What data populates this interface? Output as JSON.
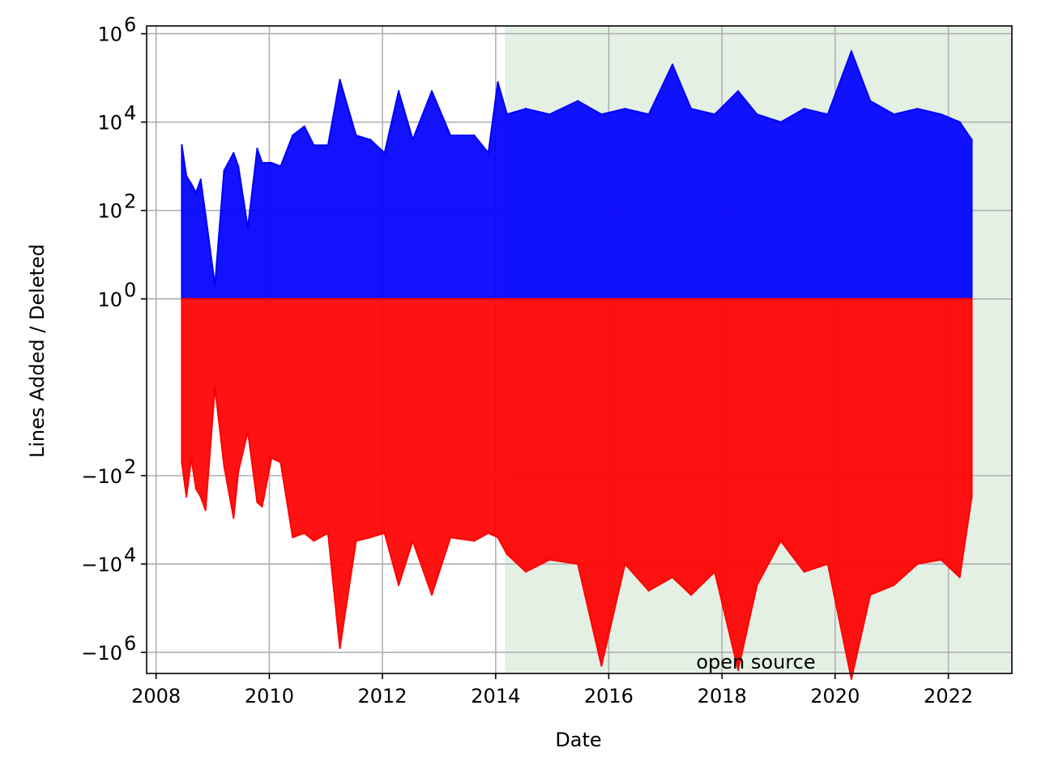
{
  "chart_data": {
    "type": "area",
    "xlabel": "Date",
    "ylabel": "Lines Added / Deleted",
    "x_axis": {
      "scale": "time",
      "range": [
        "2007-11-01",
        "2023-02-15"
      ],
      "ticks": [
        "2008",
        "2010",
        "2012",
        "2014",
        "2016",
        "2018",
        "2020",
        "2022"
      ]
    },
    "y_axis": {
      "scale": "symlog",
      "range": [
        -3000000,
        1500000
      ],
      "ticks": [
        {
          "value": 1000000,
          "base": "10",
          "exp": "6"
        },
        {
          "value": 10000,
          "base": "10",
          "exp": "4"
        },
        {
          "value": 100,
          "base": "10",
          "exp": "2"
        },
        {
          "value": 1,
          "base": "10",
          "exp": "0"
        },
        {
          "value": -100,
          "base": "−10",
          "exp": "2"
        },
        {
          "value": -10000,
          "base": "−10",
          "exp": "4"
        },
        {
          "value": -1000000,
          "base": "−10",
          "exp": "6"
        }
      ]
    },
    "grid": true,
    "shaded_region": {
      "label": "open source",
      "x_start": "2014-03-01",
      "x_end": "2023-02-15",
      "color": "#e5f0e5"
    },
    "series": [
      {
        "color": "#0000ff",
        "x": [
          "2008-06-15",
          "2008-07-15",
          "2008-08-15",
          "2008-09-15",
          "2008-10-15",
          "2008-11-15",
          "2009-01-15",
          "2009-03-15",
          "2009-05-15",
          "2009-06-15",
          "2009-08-15",
          "2009-10-15",
          "2009-11-15",
          "2010-01-15",
          "2010-03-15",
          "2010-06-01",
          "2010-08-15",
          "2010-10-15",
          "2011-01-15",
          "2011-04-01",
          "2011-07-15",
          "2011-10-15",
          "2012-01-15",
          "2012-04-15",
          "2012-07-15",
          "2012-11-15",
          "2013-03-15",
          "2013-08-15",
          "2013-11-15",
          "2014-01-15",
          "2014-03-15",
          "2014-07-15",
          "2014-12-15",
          "2015-06-15",
          "2015-11-15",
          "2016-04-15",
          "2016-09-15",
          "2017-02-15",
          "2017-06-15",
          "2017-11-15",
          "2018-04-15",
          "2018-08-15",
          "2019-01-15",
          "2019-06-15",
          "2019-11-15",
          "2020-04-15",
          "2020-08-15",
          "2021-01-15",
          "2021-06-15",
          "2021-11-15",
          "2022-03-15",
          "2022-06-01"
        ],
        "values": [
          3000,
          600,
          400,
          250,
          500,
          80,
          2,
          800,
          2000,
          1000,
          40,
          2500,
          1200,
          1200,
          1000,
          5000,
          8000,
          3000,
          3000,
          90000,
          5000,
          4000,
          2000,
          50000,
          4000,
          50000,
          5000,
          5000,
          2000,
          80000,
          15000,
          20000,
          15000,
          30000,
          15000,
          20000,
          15000,
          200000,
          20000,
          15000,
          50000,
          15000,
          10000,
          20000,
          15000,
          400000,
          30000,
          15000,
          20000,
          15000,
          10000,
          4000
        ]
      },
      {
        "color": "#ff0000",
        "x": [
          "2008-06-15",
          "2008-07-15",
          "2008-08-15",
          "2008-09-15",
          "2008-10-15",
          "2008-11-15",
          "2009-01-15",
          "2009-03-15",
          "2009-05-15",
          "2009-06-15",
          "2009-08-15",
          "2009-10-15",
          "2009-11-15",
          "2010-01-15",
          "2010-03-15",
          "2010-06-01",
          "2010-08-15",
          "2010-10-15",
          "2011-01-15",
          "2011-04-01",
          "2011-07-15",
          "2011-10-15",
          "2012-01-15",
          "2012-04-15",
          "2012-07-15",
          "2012-11-15",
          "2013-03-15",
          "2013-08-15",
          "2013-11-15",
          "2014-01-15",
          "2014-03-15",
          "2014-07-15",
          "2014-12-15",
          "2015-06-15",
          "2015-11-15",
          "2016-04-15",
          "2016-09-15",
          "2017-02-15",
          "2017-06-15",
          "2017-11-15",
          "2018-04-15",
          "2018-08-15",
          "2019-01-15",
          "2019-06-15",
          "2019-11-15",
          "2020-04-15",
          "2020-08-15",
          "2021-01-15",
          "2021-06-15",
          "2021-11-15",
          "2022-03-15",
          "2022-06-01"
        ],
        "values": [
          -50,
          -300,
          -40,
          -200,
          -300,
          -600,
          -1,
          -60,
          -900,
          -80,
          -10,
          -400,
          -500,
          -40,
          -50,
          -2500,
          -2000,
          -3000,
          -2000,
          -800000,
          -3000,
          -2500,
          -2000,
          -30000,
          -3000,
          -50000,
          -2500,
          -3000,
          -2000,
          -2500,
          -6000,
          -15000,
          -8000,
          -10000,
          -2000000,
          -10000,
          -40000,
          -20000,
          -50000,
          -15000,
          -2500000,
          -30000,
          -3000,
          -15000,
          -10000,
          -4000000,
          -50000,
          -30000,
          -10000,
          -8000,
          -20000,
          -300
        ]
      }
    ]
  }
}
